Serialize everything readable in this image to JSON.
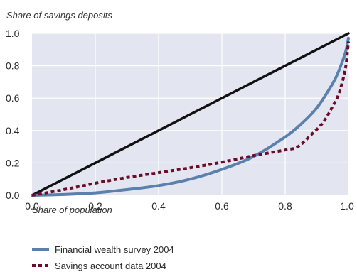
{
  "chart_data": {
    "type": "line",
    "title": "",
    "ylabel": "Share of savings deposits",
    "xlabel": "Share of population",
    "xlim": [
      0,
      1
    ],
    "ylim": [
      0,
      1
    ],
    "x_ticks": [
      0.0,
      0.2,
      0.4,
      0.6,
      0.8,
      1.0
    ],
    "y_ticks": [
      0.0,
      0.2,
      0.4,
      0.6,
      0.8,
      1.0
    ],
    "x_tick_labels": [
      "0.0",
      "0.2",
      "0.4",
      "0.6",
      "0.8",
      "1.0"
    ],
    "y_tick_labels": [
      "0.0",
      "0.2",
      "0.4",
      "0.6",
      "0.8",
      "1.0"
    ],
    "grid": true,
    "legend_position": "bottom-left",
    "background_color": "#e3e6f0",
    "equality_line": {
      "x": [
        0,
        1
      ],
      "y": [
        0,
        1
      ],
      "color": "#111111"
    },
    "series": [
      {
        "name": "Financial wealth survey 2004",
        "color": "#5a80ad",
        "style": "solid",
        "x": [
          0,
          0.1,
          0.2,
          0.3,
          0.4,
          0.5,
          0.6,
          0.7,
          0.8,
          0.85,
          0.9,
          0.95,
          0.97,
          0.99,
          1.0
        ],
        "y": [
          0,
          0.005,
          0.015,
          0.035,
          0.06,
          0.1,
          0.16,
          0.24,
          0.36,
          0.44,
          0.54,
          0.69,
          0.77,
          0.88,
          0.97
        ]
      },
      {
        "name": "Savings account data 2004",
        "color": "#6b0d2a",
        "style": "dotted",
        "x": [
          0,
          0.1,
          0.2,
          0.3,
          0.4,
          0.5,
          0.6,
          0.7,
          0.8,
          0.84,
          0.88,
          0.92,
          0.95,
          0.97,
          0.99,
          1.0
        ],
        "y": [
          0,
          0.035,
          0.075,
          0.11,
          0.14,
          0.17,
          0.205,
          0.245,
          0.28,
          0.3,
          0.37,
          0.45,
          0.55,
          0.63,
          0.78,
          0.95
        ]
      }
    ]
  }
}
